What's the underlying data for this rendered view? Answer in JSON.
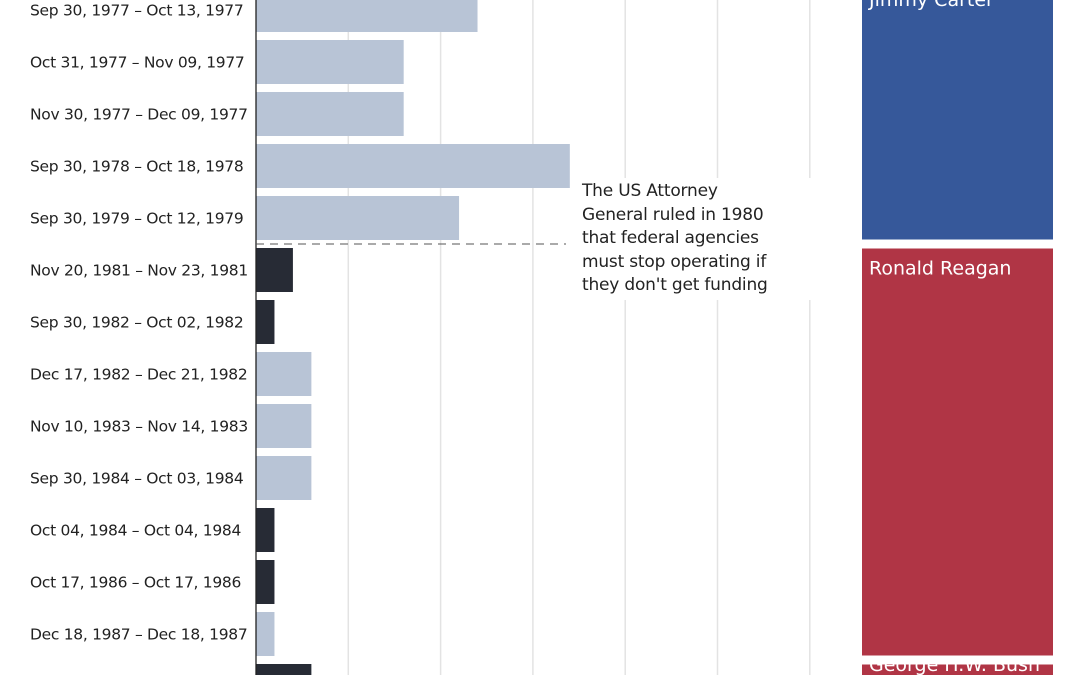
{
  "chart_data": {
    "type": "bar",
    "orientation": "horizontal",
    "unit": "days",
    "xlim": [
      0,
      30
    ],
    "grid": true,
    "categories": [
      "Sep 30, 1977 – Oct 13, 1977",
      "Oct 31, 1977 – Nov 09, 1977",
      "Nov 30, 1977 – Dec 09, 1977",
      "Sep 30, 1978 – Oct 18, 1978",
      "Sep 30, 1979 – Oct 12, 1979",
      "Nov 20, 1981 – Nov 23, 1981",
      "Sep 30, 1982 – Oct 02, 1982",
      "Dec 17, 1982 – Dec 21, 1982",
      "Nov 10, 1983 – Nov 14, 1983",
      "Sep 30, 1984 – Oct 03, 1984",
      "Oct 04, 1984 – Oct 04, 1984",
      "Oct 17, 1986 – Oct 17, 1986",
      "Dec 18, 1987 – Dec 18, 1987",
      ""
    ],
    "values": [
      12,
      8,
      8,
      17,
      11,
      2,
      1,
      3,
      3,
      3,
      1,
      1,
      1,
      3
    ],
    "bar_kind": [
      "gap",
      "gap",
      "gap",
      "gap",
      "gap",
      "shutdown",
      "shutdown",
      "gap",
      "gap",
      "gap",
      "shutdown",
      "shutdown",
      "gap",
      "shutdown"
    ],
    "colors": {
      "gap": "#b8c4d6",
      "shutdown": "#272b35",
      "grid": "#e3e3e3",
      "axis": "#222222"
    },
    "annotation": {
      "lines": [
        "The US Attorney",
        "General ruled in 1980",
        "that federal agencies",
        "must stop operating if",
        "they don't get funding"
      ],
      "after_category_index": 4
    },
    "presidents": [
      {
        "name": "Jimmy Carter",
        "color": "#36589a",
        "first_index": 0,
        "last_index": 4
      },
      {
        "name": "Ronald Reagan",
        "color": "#b03545",
        "first_index": 5,
        "last_index": 12
      },
      {
        "name": "George H.W. Bush",
        "color": "#b03545",
        "first_index": 13,
        "last_index": 13
      }
    ]
  }
}
